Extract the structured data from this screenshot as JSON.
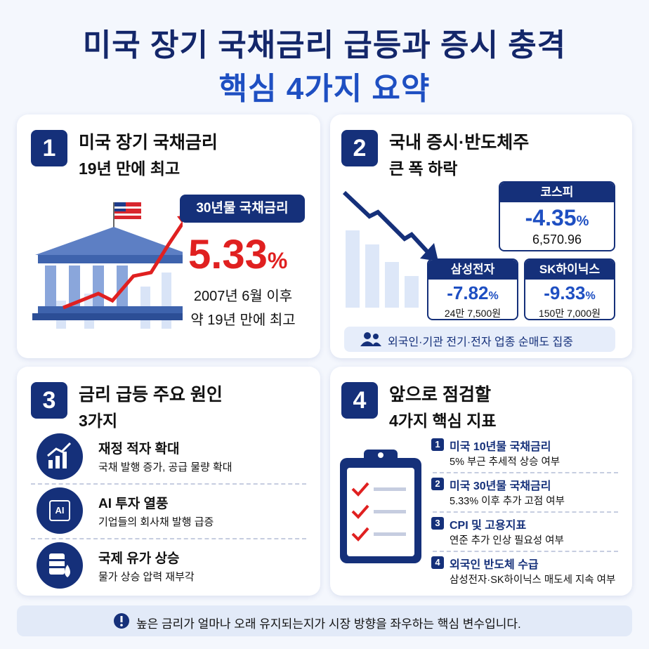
{
  "title": {
    "line1": "미국 장기 국채금리 급등과 증시 충격",
    "line2": "핵심 4가지 요약"
  },
  "cards": [
    {
      "number": "1",
      "title_lines": [
        "미국 장기 국채금리",
        "19년 만에 최고"
      ],
      "badge": "30년물 국채금리",
      "value": "5.33",
      "unit": "%",
      "note_lines": [
        "2007년 6월 이후",
        "약 19년 만에 최고"
      ]
    },
    {
      "number": "2",
      "title_lines": [
        "국내 증시·반도체주",
        "큰 폭 하락"
      ],
      "stocks": [
        {
          "name": "코스피",
          "change": "-4.35",
          "unit": "%",
          "price": "6,570.96"
        },
        {
          "name": "삼성전자",
          "change": "-7.82",
          "unit": "%",
          "price": "24만 7,500원"
        },
        {
          "name": "SK하이닉스",
          "change": "-9.33",
          "unit": "%",
          "price": "150만 7,000원"
        }
      ],
      "footer": "외국인·기관 전기·전자 업종 순매도 집중"
    },
    {
      "number": "3",
      "title_lines": [
        "금리 급등 주요 원인",
        "3가지"
      ],
      "items": [
        {
          "title": "재정 적자 확대",
          "desc": "국채 발행 증가, 공급 물량 확대"
        },
        {
          "title": "AI 투자 열풍",
          "desc": "기업들의 회사채 발행 급증",
          "icon_label": "AI"
        },
        {
          "title": "국제 유가 상승",
          "desc": "물가 상승 압력 재부각"
        }
      ]
    },
    {
      "number": "4",
      "title_lines": [
        "앞으로 점검할",
        "4가지 핵심 지표"
      ],
      "items": [
        {
          "number": "1",
          "title": "미국 10년물 국채금리",
          "desc": "5% 부근 추세적 상승 여부"
        },
        {
          "number": "2",
          "title": "미국 30년물 국채금리",
          "desc": "5.33% 이후 추가 고점 여부"
        },
        {
          "number": "3",
          "title": "CPI 및 고용지표",
          "desc": "연준 추가 인상 필요성 여부"
        },
        {
          "number": "4",
          "title": "외국인 반도체 수급",
          "desc": "삼성전자·SK하이닉스 매도세 지속 여부"
        }
      ]
    }
  ],
  "footer": "높은 금리가 얼마나 오래 유지되는지가 시장 방향을 좌우하는 핵심 변수입니다."
}
